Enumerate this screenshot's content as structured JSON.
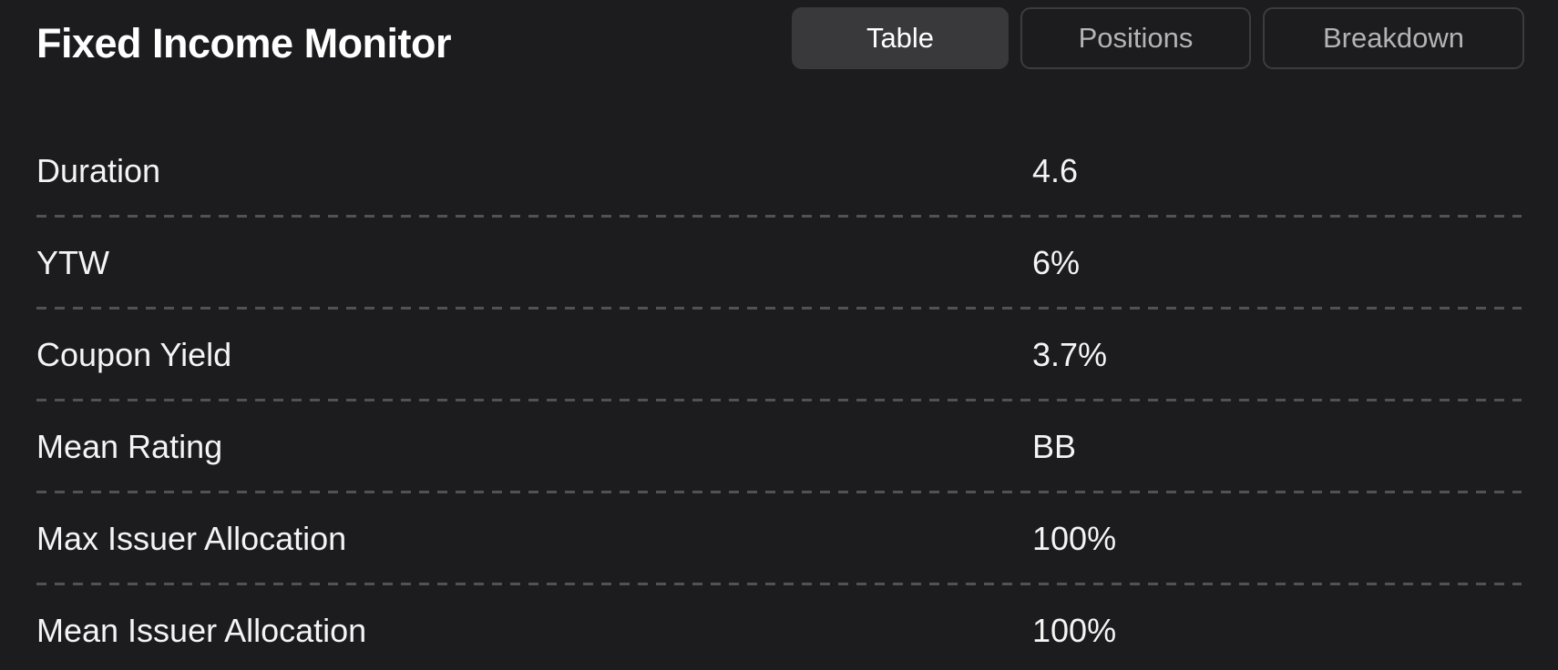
{
  "header": {
    "title": "Fixed Income Monitor"
  },
  "tabs": [
    {
      "label": "Table",
      "active": true
    },
    {
      "label": "Positions",
      "active": false
    },
    {
      "label": "Breakdown",
      "active": false
    }
  ],
  "metrics": [
    {
      "label": "Duration",
      "value": "4.6"
    },
    {
      "label": "YTW",
      "value": "6%"
    },
    {
      "label": "Coupon Yield",
      "value": "3.7%"
    },
    {
      "label": "Mean Rating",
      "value": "BB"
    },
    {
      "label": "Max Issuer Allocation",
      "value": "100%"
    },
    {
      "label": "Mean Issuer Allocation",
      "value": "100%"
    }
  ],
  "colors": {
    "background": "#1c1c1e",
    "title_text": "#ffffff",
    "row_text": "#f4f4f5",
    "active_tab_background": "#39393c",
    "active_tab_text": "#ffffff",
    "inactive_tab_border": "#3c3c3f",
    "inactive_tab_text": "#b3b3b8",
    "divider": "#525254"
  }
}
